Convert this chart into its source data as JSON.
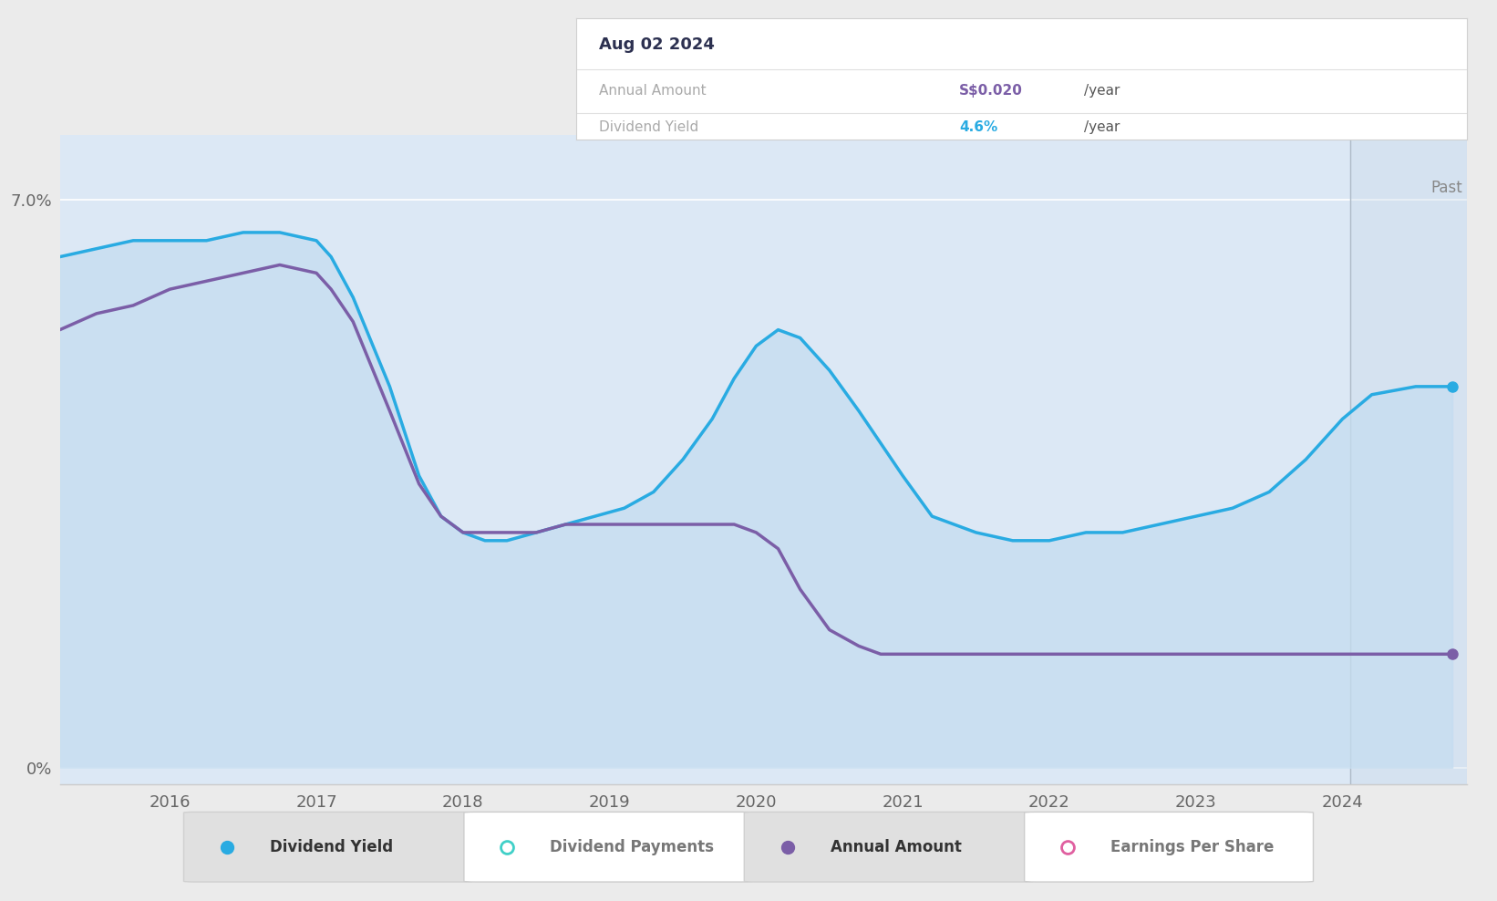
{
  "background_color": "#ebebeb",
  "plot_area_color": "#dce8f5",
  "x_min": 2015.25,
  "x_max": 2024.85,
  "y_min": -0.002,
  "y_max": 0.078,
  "past_line_x": 2024.05,
  "past_label": "Past",
  "tooltip_date": "Aug 02 2024",
  "tooltip_annual_label": "Annual Amount",
  "tooltip_annual_value": "S$0.020",
  "tooltip_annual_value_color": "#7b5ea7",
  "tooltip_annual_unit": "/year",
  "tooltip_yield_label": "Dividend Yield",
  "tooltip_yield_value": "4.6%",
  "tooltip_yield_value_color": "#29abe2",
  "tooltip_yield_unit": "/year",
  "dividend_yield_color": "#29abe2",
  "dividend_yield_fill_color": "#c5ddf0",
  "annual_amount_color": "#7b5ea7",
  "dividend_yield_x": [
    2015.25,
    2015.5,
    2015.75,
    2016.0,
    2016.25,
    2016.5,
    2016.75,
    2017.0,
    2017.1,
    2017.25,
    2017.5,
    2017.7,
    2017.85,
    2018.0,
    2018.15,
    2018.3,
    2018.5,
    2018.7,
    2018.9,
    2019.1,
    2019.3,
    2019.5,
    2019.7,
    2019.85,
    2020.0,
    2020.15,
    2020.3,
    2020.5,
    2020.7,
    2020.85,
    2021.0,
    2021.2,
    2021.5,
    2021.75,
    2022.0,
    2022.25,
    2022.5,
    2022.75,
    2023.0,
    2023.25,
    2023.5,
    2023.75,
    2024.0,
    2024.2,
    2024.5,
    2024.75
  ],
  "dividend_yield_y": [
    0.063,
    0.064,
    0.065,
    0.065,
    0.065,
    0.066,
    0.066,
    0.065,
    0.063,
    0.058,
    0.047,
    0.036,
    0.031,
    0.029,
    0.028,
    0.028,
    0.029,
    0.03,
    0.031,
    0.032,
    0.034,
    0.038,
    0.043,
    0.048,
    0.052,
    0.054,
    0.053,
    0.049,
    0.044,
    0.04,
    0.036,
    0.031,
    0.029,
    0.028,
    0.028,
    0.029,
    0.029,
    0.03,
    0.031,
    0.032,
    0.034,
    0.038,
    0.043,
    0.046,
    0.047,
    0.047
  ],
  "annual_amount_x": [
    2015.25,
    2015.5,
    2015.75,
    2016.0,
    2016.25,
    2016.5,
    2016.75,
    2017.0,
    2017.1,
    2017.25,
    2017.5,
    2017.7,
    2017.85,
    2018.0,
    2018.15,
    2018.3,
    2018.5,
    2018.7,
    2018.9,
    2019.1,
    2019.3,
    2019.5,
    2019.7,
    2019.85,
    2020.0,
    2020.15,
    2020.3,
    2020.5,
    2020.7,
    2020.85,
    2021.0,
    2021.2,
    2021.5,
    2021.75,
    2022.0,
    2022.25,
    2022.5,
    2022.75,
    2023.0,
    2023.25,
    2023.5,
    2023.75,
    2024.0,
    2024.2,
    2024.5,
    2024.75
  ],
  "annual_amount_y": [
    0.054,
    0.056,
    0.057,
    0.059,
    0.06,
    0.061,
    0.062,
    0.061,
    0.059,
    0.055,
    0.044,
    0.035,
    0.031,
    0.029,
    0.029,
    0.029,
    0.029,
    0.03,
    0.03,
    0.03,
    0.03,
    0.03,
    0.03,
    0.03,
    0.029,
    0.027,
    0.022,
    0.017,
    0.015,
    0.014,
    0.014,
    0.014,
    0.014,
    0.014,
    0.014,
    0.014,
    0.014,
    0.014,
    0.014,
    0.014,
    0.014,
    0.014,
    0.014,
    0.014,
    0.014,
    0.014
  ],
  "xticks": [
    2016,
    2017,
    2018,
    2019,
    2020,
    2021,
    2022,
    2023,
    2024
  ],
  "ytick_7_label": "7.0%",
  "ytick_0_label": "0%",
  "legend_items": [
    {
      "label": "Dividend Yield",
      "color": "#29abe2",
      "filled": true,
      "box_color": "#e0e0e0",
      "text_color": "#333333"
    },
    {
      "label": "Dividend Payments",
      "color": "#40d0c8",
      "filled": false,
      "box_color": "#ffffff",
      "text_color": "#777777"
    },
    {
      "label": "Annual Amount",
      "color": "#7b5ea7",
      "filled": true,
      "box_color": "#e0e0e0",
      "text_color": "#333333"
    },
    {
      "label": "Earnings Per Share",
      "color": "#e060a0",
      "filled": false,
      "box_color": "#ffffff",
      "text_color": "#777777"
    }
  ]
}
